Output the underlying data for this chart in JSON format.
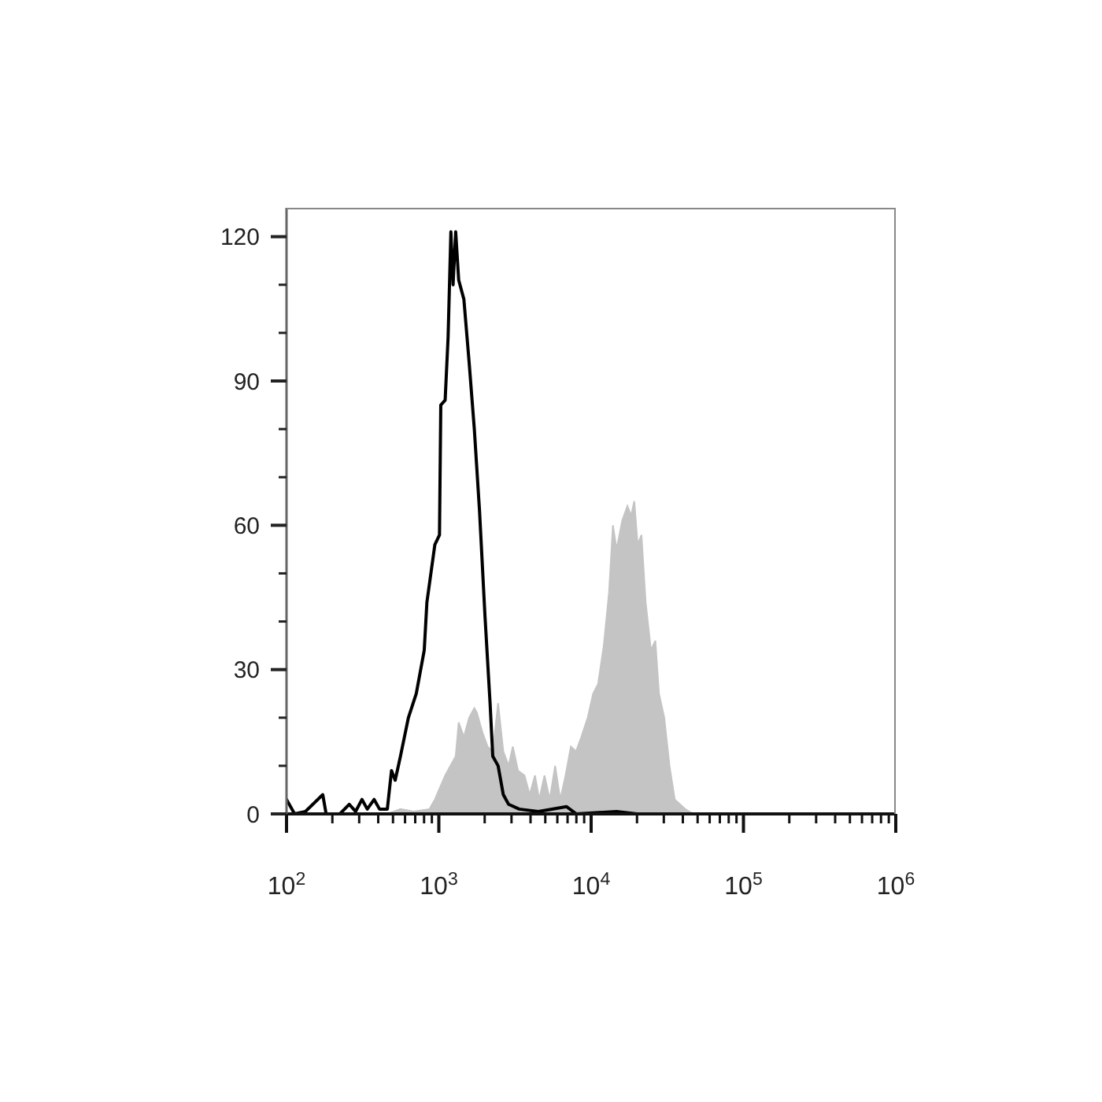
{
  "chart_data": {
    "type": "area",
    "log": "x",
    "xlim": [
      100,
      1000000
    ],
    "ylim": [
      0,
      126
    ],
    "xticks": [
      {
        "value": 100,
        "label": "10$^{2}$"
      },
      {
        "value": 200,
        "label": null
      },
      {
        "value": 300,
        "label": null
      },
      {
        "value": 400,
        "label": null
      },
      {
        "value": 500,
        "label": null
      },
      {
        "value": 600,
        "label": null
      },
      {
        "value": 700,
        "label": null
      },
      {
        "value": 800,
        "label": null
      },
      {
        "value": 900,
        "label": null
      },
      {
        "value": 1000,
        "label": "10$^{3}$"
      },
      {
        "value": 2000,
        "label": null
      },
      {
        "value": 3000,
        "label": null
      },
      {
        "value": 4000,
        "label": null
      },
      {
        "value": 5000,
        "label": null
      },
      {
        "value": 6000,
        "label": null
      },
      {
        "value": 7000,
        "label": null
      },
      {
        "value": 8000,
        "label": null
      },
      {
        "value": 9000,
        "label": null
      },
      {
        "value": 10000,
        "label": "10$^{4}$"
      },
      {
        "value": 20000,
        "label": null
      },
      {
        "value": 30000,
        "label": null
      },
      {
        "value": 40000,
        "label": null
      },
      {
        "value": 50000,
        "label": null
      },
      {
        "value": 60000,
        "label": null
      },
      {
        "value": 70000,
        "label": null
      },
      {
        "value": 80000,
        "label": null
      },
      {
        "value": 90000,
        "label": null
      },
      {
        "value": 100000,
        "label": "10$^{5}$"
      },
      {
        "value": 200000,
        "label": null
      },
      {
        "value": 300000,
        "label": null
      },
      {
        "value": 400000,
        "label": null
      },
      {
        "value": 500000,
        "label": null
      },
      {
        "value": 600000,
        "label": null
      },
      {
        "value": 700000,
        "label": null
      },
      {
        "value": 800000,
        "label": null
      },
      {
        "value": 900000,
        "label": null
      },
      {
        "value": 1000000,
        "label": "10$^{6}$"
      }
    ],
    "yticks": [
      0,
      {
        "value": 10,
        "label": null
      },
      {
        "value": 20,
        "label": null
      },
      30,
      {
        "value": 40,
        "label": null
      },
      {
        "value": 50,
        "label": null
      },
      60,
      {
        "value": 70,
        "label": null
      },
      {
        "value": 80,
        "label": null
      },
      90,
      {
        "value": 100,
        "label": null
      },
      {
        "value": 110,
        "label": null
      },
      120
    ],
    "series": [
      {
        "color": "#c4c4c4",
        "x": [
          459,
          560,
          682,
          867,
          942,
          1100,
          1290,
          1350,
          1460,
          1580,
          1710,
          1780,
          1930,
          2090,
          2260,
          2450,
          2650,
          2870,
          3060,
          3310,
          3650,
          3950,
          4280,
          4560,
          4940,
          5350,
          5800,
          6270,
          6790,
          7360,
          7960,
          8620,
          9490,
          10300,
          11100,
          12100,
          13100,
          13900,
          14700,
          16000,
          17300,
          18300,
          19200,
          20200,
          21400,
          22800,
          24700,
          26400,
          27900,
          30200,
          32700,
          35400,
          38300,
          41500,
          46800
        ],
        "values": [
          0,
          1,
          0.5,
          1,
          3,
          8,
          12,
          19,
          16,
          20,
          22,
          21,
          17,
          14,
          13,
          23,
          13,
          10,
          14,
          9,
          8,
          4,
          8,
          3,
          8,
          3,
          10,
          3,
          8,
          14,
          13,
          16,
          20,
          25,
          27,
          35,
          46,
          60,
          55,
          61,
          64,
          62,
          65,
          56,
          58,
          44,
          34,
          36,
          25,
          20,
          10,
          3,
          2,
          1,
          0
        ]
      },
      {
        "type": "line",
        "color": "#000000",
        "x": [
          100,
          113,
          133,
          173,
          182,
          224,
          258,
          284,
          313,
          339,
          376,
          408,
          459,
          489,
          517,
          560,
          631,
          711,
          802,
          835,
          942,
          1010,
          1030,
          1100,
          1150,
          1200,
          1240,
          1290,
          1350,
          1460,
          1580,
          1710,
          1850,
          2010,
          2170,
          2260,
          2450,
          2650,
          2870,
          3370,
          4500,
          6900,
          8000,
          14700,
          20000,
          100000,
          1000000
        ],
        "values": [
          3,
          0,
          0.5,
          4,
          0,
          0,
          2,
          0.5,
          3,
          1,
          3,
          1,
          1,
          9,
          7,
          12,
          20,
          25,
          34,
          44,
          56,
          58,
          85,
          86,
          99,
          121,
          110,
          121,
          111,
          107,
          94,
          80,
          63,
          41,
          23,
          12,
          10,
          4,
          2,
          1,
          0.5,
          1.5,
          0,
          0.5,
          0,
          0,
          0
        ]
      }
    ]
  }
}
